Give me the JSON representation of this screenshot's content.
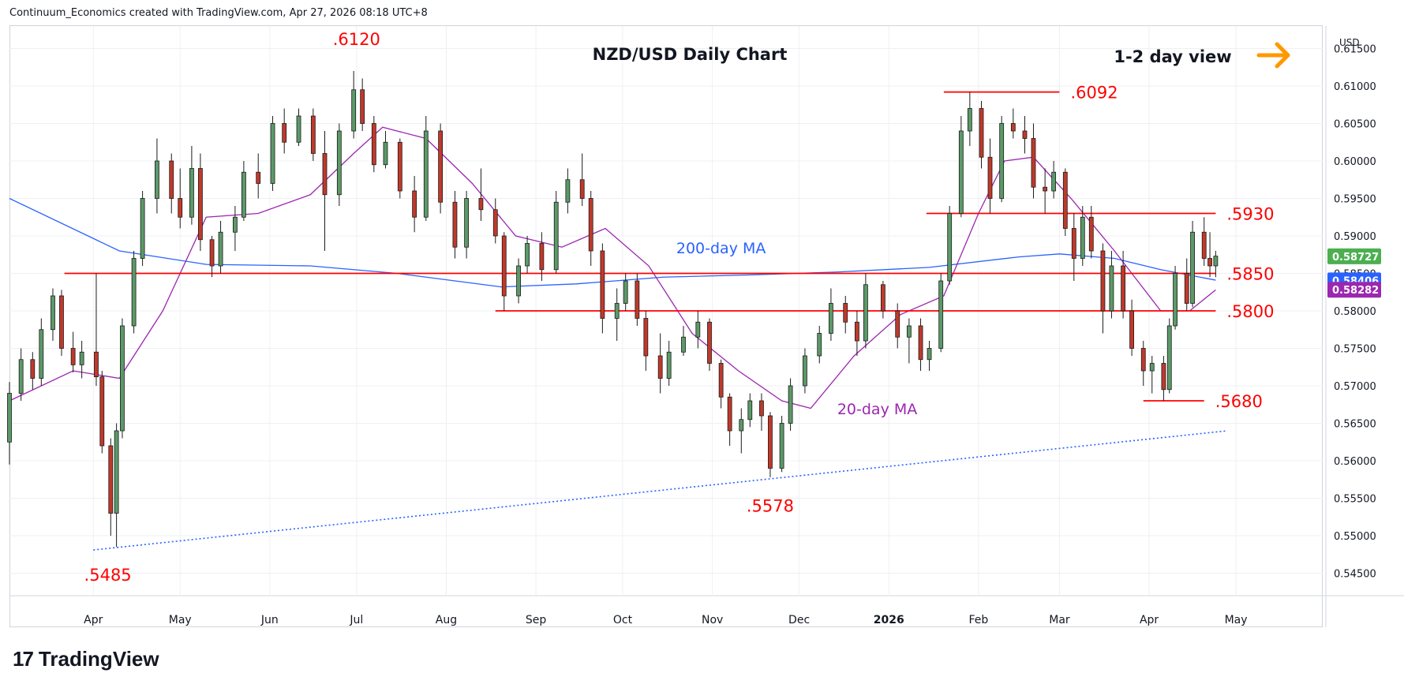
{
  "header": {
    "text": "Continuum_Economics created with TradingView.com, Apr 27, 2026 08:18 UTC+8"
  },
  "footer": {
    "logo_mark": "17",
    "brand": "TradingView"
  },
  "colors": {
    "up": "#5b9a68",
    "down": "#c0392b",
    "level": "#ff0000",
    "ma200": "#2962ff",
    "ma20": "#9c27b0",
    "trend": "#2962ff",
    "arrow": "#ff9800",
    "grid": "#eef0f3"
  },
  "chart_data": {
    "type": "candlestick",
    "title": "NZD/USD Daily Chart",
    "view_label": "1-2 day view",
    "view_arrow_icon": "arrow-right-icon",
    "currency": "USD",
    "ylim": [
      0.542,
      0.618
    ],
    "y_ticks": [
      "0.61500",
      "0.61000",
      "0.60500",
      "0.60000",
      "0.59500",
      "0.59000",
      "0.58500",
      "0.58000",
      "0.57500",
      "0.57000",
      "0.56500",
      "0.56000",
      "0.55500",
      "0.55000",
      "0.54500"
    ],
    "y_tick_values": [
      0.615,
      0.61,
      0.605,
      0.6,
      0.595,
      0.59,
      0.585,
      0.58,
      0.575,
      0.57,
      0.565,
      0.56,
      0.555,
      0.55,
      0.545
    ],
    "x_months": [
      "Apr",
      "May",
      "Jun",
      "Jul",
      "Aug",
      "Sep",
      "Oct",
      "Nov",
      "Dec",
      "2026",
      "Feb",
      "Mar",
      "Apr",
      "May"
    ],
    "x_month_dates": [
      "2025-04-01",
      "2025-05-01",
      "2025-06-01",
      "2025-07-01",
      "2025-08-01",
      "2025-09-01",
      "2025-10-01",
      "2025-11-01",
      "2025-12-01",
      "2026-01-01",
      "2026-02-01",
      "2026-03-01",
      "2026-04-01",
      "2026-05-01"
    ],
    "x_range": [
      "2025-03-03",
      "2026-05-31"
    ],
    "levels": [
      {
        "label": ".5850",
        "value": 0.585,
        "from": "2025-03-22",
        "to": "2026-04-24"
      },
      {
        "label": ".5800",
        "value": 0.58,
        "from": "2025-08-18",
        "to": "2026-04-24"
      },
      {
        "label": ".5930",
        "value": 0.593,
        "from": "2026-01-14",
        "to": "2026-04-24"
      },
      {
        "label": ".6092",
        "value": 0.6092,
        "from": "2026-01-20",
        "to": "2026-03-01"
      },
      {
        "label": ".5680",
        "value": 0.568,
        "from": "2026-03-30",
        "to": "2026-04-20"
      }
    ],
    "annotations": [
      {
        "text": ".6120",
        "x": "2025-07-01",
        "y": 0.6155
      },
      {
        "text": ".5485",
        "x": "2025-04-06",
        "y": 0.544
      },
      {
        "text": ".5578",
        "x": "2025-11-21",
        "y": 0.5532
      },
      {
        "text": "200-day MA",
        "x": "2025-11-04",
        "y": 0.5877,
        "color": "ma200"
      },
      {
        "text": "20-day MA",
        "x": "2025-12-28",
        "y": 0.5662,
        "color": "ma20"
      }
    ],
    "price_labels": [
      {
        "text": "0.58727",
        "value": 0.58727,
        "color": "#4caf50"
      },
      {
        "text": "0.58406",
        "value": 0.58406,
        "color": "#2962ff"
      },
      {
        "text": "0.58282",
        "value": 0.58282,
        "color": "#9c27b0"
      }
    ],
    "trendline": {
      "from": [
        "2025-04-01",
        0.5481
      ],
      "to": [
        "2026-04-28",
        0.564
      ]
    },
    "ma200": [
      [
        "2025-03-03",
        0.595
      ],
      [
        "2025-04-10",
        0.588
      ],
      [
        "2025-05-10",
        0.5862
      ],
      [
        "2025-06-15",
        0.586
      ],
      [
        "2025-07-15",
        0.585
      ],
      [
        "2025-08-20",
        0.5832
      ],
      [
        "2025-09-15",
        0.5836
      ],
      [
        "2025-10-15",
        0.5845
      ],
      [
        "2025-11-15",
        0.5848
      ],
      [
        "2025-12-15",
        0.5852
      ],
      [
        "2026-01-15",
        0.5858
      ],
      [
        "2026-02-15",
        0.5872
      ],
      [
        "2026-03-01",
        0.5876
      ],
      [
        "2026-03-20",
        0.587
      ],
      [
        "2026-04-05",
        0.5855
      ],
      [
        "2026-04-24",
        0.5841
      ]
    ],
    "ma20": [
      [
        "2025-03-03",
        0.568
      ],
      [
        "2025-03-25",
        0.572
      ],
      [
        "2025-04-10",
        0.571
      ],
      [
        "2025-04-25",
        0.58
      ],
      [
        "2025-05-10",
        0.5925
      ],
      [
        "2025-05-28",
        0.593
      ],
      [
        "2025-06-15",
        0.5955
      ],
      [
        "2025-06-30",
        0.601
      ],
      [
        "2025-07-10",
        0.6045
      ],
      [
        "2025-07-25",
        0.603
      ],
      [
        "2025-08-10",
        0.597
      ],
      [
        "2025-08-25",
        0.59
      ],
      [
        "2025-09-10",
        0.5885
      ],
      [
        "2025-09-25",
        0.591
      ],
      [
        "2025-10-10",
        0.586
      ],
      [
        "2025-10-25",
        0.577
      ],
      [
        "2025-11-10",
        0.572
      ],
      [
        "2025-11-25",
        0.568
      ],
      [
        "2025-12-05",
        0.567
      ],
      [
        "2025-12-20",
        0.574
      ],
      [
        "2026-01-05",
        0.5795
      ],
      [
        "2026-01-20",
        0.582
      ],
      [
        "2026-02-01",
        0.593
      ],
      [
        "2026-02-10",
        0.6
      ],
      [
        "2026-02-20",
        0.6005
      ],
      [
        "2026-03-05",
        0.595
      ],
      [
        "2026-03-20",
        0.588
      ],
      [
        "2026-04-05",
        0.58
      ],
      [
        "2026-04-15",
        0.58
      ],
      [
        "2026-04-24",
        0.5828
      ]
    ],
    "ohlc": [
      [
        "2025-03-03",
        0.5625,
        0.5705,
        0.5595,
        0.569
      ],
      [
        "2025-03-07",
        0.569,
        0.575,
        0.568,
        0.5735
      ],
      [
        "2025-03-11",
        0.5735,
        0.5745,
        0.5695,
        0.571
      ],
      [
        "2025-03-14",
        0.571,
        0.579,
        0.57,
        0.5775
      ],
      [
        "2025-03-18",
        0.5775,
        0.583,
        0.576,
        0.582
      ],
      [
        "2025-03-21",
        0.582,
        0.5828,
        0.574,
        0.575
      ],
      [
        "2025-03-25",
        0.575,
        0.5772,
        0.5718,
        0.5728
      ],
      [
        "2025-03-28",
        0.5728,
        0.576,
        0.571,
        0.5745
      ],
      [
        "2025-04-02",
        0.5745,
        0.585,
        0.57,
        0.5712
      ],
      [
        "2025-04-04",
        0.5712,
        0.572,
        0.561,
        0.562
      ],
      [
        "2025-04-07",
        0.562,
        0.563,
        0.55,
        0.553
      ],
      [
        "2025-04-09",
        0.553,
        0.565,
        0.5485,
        0.564
      ],
      [
        "2025-04-11",
        0.564,
        0.579,
        0.563,
        0.578
      ],
      [
        "2025-04-15",
        0.578,
        0.588,
        0.577,
        0.587
      ],
      [
        "2025-04-18",
        0.587,
        0.596,
        0.586,
        0.595
      ],
      [
        "2025-04-23",
        0.595,
        0.603,
        0.593,
        0.6
      ],
      [
        "2025-04-28",
        0.6,
        0.601,
        0.593,
        0.595
      ],
      [
        "2025-05-01",
        0.595,
        0.599,
        0.591,
        0.5925
      ],
      [
        "2025-05-05",
        0.5925,
        0.602,
        0.5915,
        0.599
      ],
      [
        "2025-05-08",
        0.599,
        0.601,
        0.588,
        0.5895
      ],
      [
        "2025-05-12",
        0.5895,
        0.59,
        0.5845,
        0.586
      ],
      [
        "2025-05-15",
        0.586,
        0.592,
        0.585,
        0.5905
      ],
      [
        "2025-05-20",
        0.5905,
        0.594,
        0.588,
        0.5925
      ],
      [
        "2025-05-23",
        0.5925,
        0.6,
        0.592,
        0.5985
      ],
      [
        "2025-05-28",
        0.5985,
        0.601,
        0.595,
        0.597
      ],
      [
        "2025-06-02",
        0.597,
        0.606,
        0.596,
        0.605
      ],
      [
        "2025-06-06",
        0.605,
        0.607,
        0.601,
        0.6025
      ],
      [
        "2025-06-11",
        0.6025,
        0.607,
        0.602,
        0.606
      ],
      [
        "2025-06-16",
        0.606,
        0.607,
        0.6,
        0.601
      ],
      [
        "2025-06-20",
        0.601,
        0.604,
        0.588,
        0.5955
      ],
      [
        "2025-06-25",
        0.5955,
        0.605,
        0.594,
        0.604
      ],
      [
        "2025-06-30",
        0.604,
        0.612,
        0.603,
        0.6095
      ],
      [
        "2025-07-03",
        0.6095,
        0.611,
        0.604,
        0.605
      ],
      [
        "2025-07-07",
        0.605,
        0.606,
        0.5985,
        0.5995
      ],
      [
        "2025-07-11",
        0.5995,
        0.604,
        0.599,
        0.6025
      ],
      [
        "2025-07-16",
        0.6025,
        0.603,
        0.595,
        0.596
      ],
      [
        "2025-07-21",
        0.596,
        0.598,
        0.5905,
        0.5925
      ],
      [
        "2025-07-25",
        0.5925,
        0.606,
        0.592,
        0.604
      ],
      [
        "2025-07-30",
        0.604,
        0.605,
        0.593,
        0.5945
      ],
      [
        "2025-08-04",
        0.5945,
        0.596,
        0.587,
        0.5885
      ],
      [
        "2025-08-08",
        0.5885,
        0.596,
        0.587,
        0.595
      ],
      [
        "2025-08-13",
        0.595,
        0.599,
        0.592,
        0.5935
      ],
      [
        "2025-08-18",
        0.5935,
        0.595,
        0.589,
        0.59
      ],
      [
        "2025-08-21",
        0.59,
        0.5905,
        0.58,
        0.582
      ],
      [
        "2025-08-26",
        0.582,
        0.587,
        0.581,
        0.586
      ],
      [
        "2025-08-29",
        0.586,
        0.59,
        0.585,
        0.589
      ],
      [
        "2025-09-03",
        0.589,
        0.5905,
        0.584,
        0.5855
      ],
      [
        "2025-09-08",
        0.5855,
        0.596,
        0.585,
        0.5945
      ],
      [
        "2025-09-12",
        0.5945,
        0.599,
        0.593,
        0.5975
      ],
      [
        "2025-09-17",
        0.5975,
        0.601,
        0.594,
        0.595
      ],
      [
        "2025-09-20",
        0.595,
        0.596,
        0.586,
        0.588
      ],
      [
        "2025-09-24",
        0.588,
        0.589,
        0.577,
        0.579
      ],
      [
        "2025-09-29",
        0.579,
        0.583,
        0.576,
        0.581
      ],
      [
        "2025-10-02",
        0.581,
        0.585,
        0.58,
        0.584
      ],
      [
        "2025-10-06",
        0.584,
        0.585,
        0.578,
        0.579
      ],
      [
        "2025-10-09",
        0.579,
        0.58,
        0.572,
        0.574
      ],
      [
        "2025-10-14",
        0.574,
        0.577,
        0.569,
        0.571
      ],
      [
        "2025-10-17",
        0.571,
        0.576,
        0.57,
        0.5745
      ],
      [
        "2025-10-22",
        0.5745,
        0.578,
        0.574,
        0.5765
      ],
      [
        "2025-10-27",
        0.5765,
        0.58,
        0.575,
        0.5785
      ],
      [
        "2025-10-31",
        0.5785,
        0.579,
        0.572,
        0.573
      ],
      [
        "2025-11-04",
        0.573,
        0.5735,
        0.567,
        0.5685
      ],
      [
        "2025-11-07",
        0.5685,
        0.569,
        0.562,
        0.564
      ],
      [
        "2025-11-11",
        0.564,
        0.567,
        0.561,
        0.5655
      ],
      [
        "2025-11-14",
        0.5655,
        0.569,
        0.5645,
        0.568
      ],
      [
        "2025-11-18",
        0.568,
        0.569,
        0.564,
        0.566
      ],
      [
        "2025-11-21",
        0.566,
        0.5665,
        0.5578,
        0.559
      ],
      [
        "2025-11-25",
        0.559,
        0.566,
        0.5585,
        0.565
      ],
      [
        "2025-11-28",
        0.565,
        0.571,
        0.564,
        0.57
      ],
      [
        "2025-12-03",
        0.57,
        0.575,
        0.569,
        0.574
      ],
      [
        "2025-12-08",
        0.574,
        0.578,
        0.573,
        0.577
      ],
      [
        "2025-12-12",
        0.577,
        0.583,
        0.576,
        0.581
      ],
      [
        "2025-12-17",
        0.581,
        0.582,
        0.577,
        0.5785
      ],
      [
        "2025-12-21",
        0.5785,
        0.58,
        0.574,
        0.576
      ],
      [
        "2025-12-24",
        0.576,
        0.585,
        0.575,
        0.5835
      ],
      [
        "2025-12-30",
        0.5835,
        0.584,
        0.579,
        0.58
      ],
      [
        "2026-01-04",
        0.58,
        0.581,
        0.575,
        0.5765
      ],
      [
        "2026-01-08",
        0.5765,
        0.579,
        0.573,
        0.578
      ],
      [
        "2026-01-12",
        0.578,
        0.579,
        0.572,
        0.5735
      ],
      [
        "2026-01-15",
        0.5735,
        0.576,
        0.572,
        0.575
      ],
      [
        "2026-01-19",
        0.575,
        0.585,
        0.5745,
        0.584
      ],
      [
        "2026-01-22",
        0.584,
        0.594,
        0.5835,
        0.593
      ],
      [
        "2026-01-26",
        0.593,
        0.606,
        0.5925,
        0.604
      ],
      [
        "2026-01-29",
        0.604,
        0.6092,
        0.602,
        0.607
      ],
      [
        "2026-02-02",
        0.607,
        0.608,
        0.599,
        0.6005
      ],
      [
        "2026-02-05",
        0.6005,
        0.603,
        0.593,
        0.595
      ],
      [
        "2026-02-09",
        0.595,
        0.606,
        0.5945,
        0.605
      ],
      [
        "2026-02-13",
        0.605,
        0.607,
        0.603,
        0.604
      ],
      [
        "2026-02-17",
        0.604,
        0.606,
        0.601,
        0.603
      ],
      [
        "2026-02-20",
        0.603,
        0.605,
        0.595,
        0.5965
      ],
      [
        "2026-02-24",
        0.5965,
        0.599,
        0.593,
        0.596
      ],
      [
        "2026-02-27",
        0.596,
        0.6,
        0.595,
        0.5985
      ],
      [
        "2026-03-03",
        0.5985,
        0.599,
        0.59,
        0.591
      ],
      [
        "2026-03-06",
        0.591,
        0.593,
        0.584,
        0.587
      ],
      [
        "2026-03-09",
        0.587,
        0.594,
        0.586,
        0.5925
      ],
      [
        "2026-03-12",
        0.5925,
        0.594,
        0.587,
        0.588
      ],
      [
        "2026-03-16",
        0.588,
        0.589,
        0.577,
        0.58
      ],
      [
        "2026-03-19",
        0.58,
        0.588,
        0.579,
        0.586
      ],
      [
        "2026-03-23",
        0.586,
        0.588,
        0.579,
        0.58
      ],
      [
        "2026-03-26",
        0.58,
        0.5815,
        0.574,
        0.575
      ],
      [
        "2026-03-30",
        0.575,
        0.576,
        0.57,
        0.572
      ],
      [
        "2026-04-02",
        0.572,
        0.574,
        0.569,
        0.573
      ],
      [
        "2026-04-06",
        0.573,
        0.574,
        0.568,
        0.5695
      ],
      [
        "2026-04-08",
        0.5695,
        0.579,
        0.569,
        0.578
      ],
      [
        "2026-04-10",
        0.578,
        0.586,
        0.5775,
        0.585
      ],
      [
        "2026-04-14",
        0.585,
        0.587,
        0.58,
        0.581
      ],
      [
        "2026-04-16",
        0.581,
        0.592,
        0.5805,
        0.5905
      ],
      [
        "2026-04-20",
        0.5905,
        0.5925,
        0.586,
        0.587
      ],
      [
        "2026-04-22",
        0.587,
        0.5905,
        0.5845,
        0.586
      ],
      [
        "2026-04-24",
        0.586,
        0.588,
        0.5845,
        0.5873
      ]
    ]
  }
}
